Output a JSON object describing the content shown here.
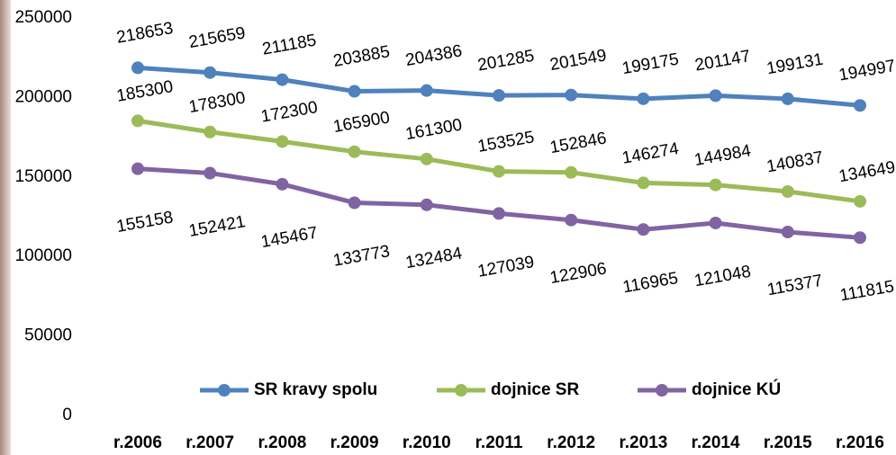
{
  "chart_data": {
    "type": "line",
    "categories": [
      "r.2006",
      "r.2007",
      "r.2008",
      "r.2009",
      "r.2010",
      "r.2011",
      "r.2012",
      "r.2013",
      "r.2014",
      "r.2015",
      "r.2016"
    ],
    "series": [
      {
        "name": "SR kravy spolu",
        "color": "#4f81bd",
        "values": [
          218653,
          215659,
          211185,
          203885,
          204386,
          201285,
          201549,
          199175,
          201147,
          199131,
          194997
        ]
      },
      {
        "name": "dojnice SR",
        "color": "#9bbb59",
        "values": [
          185300,
          178300,
          172300,
          165900,
          161300,
          153525,
          152846,
          146274,
          144984,
          140837,
          134649
        ]
      },
      {
        "name": "dojnice KÚ",
        "color": "#8064a2",
        "values": [
          155158,
          152421,
          145467,
          133773,
          132484,
          127039,
          122906,
          116965,
          121048,
          115377,
          111815
        ]
      }
    ],
    "ylim": [
      0,
      250000
    ],
    "yticks": [
      0,
      50000,
      100000,
      150000,
      200000,
      250000
    ],
    "grid": false,
    "legend": "bottom"
  }
}
